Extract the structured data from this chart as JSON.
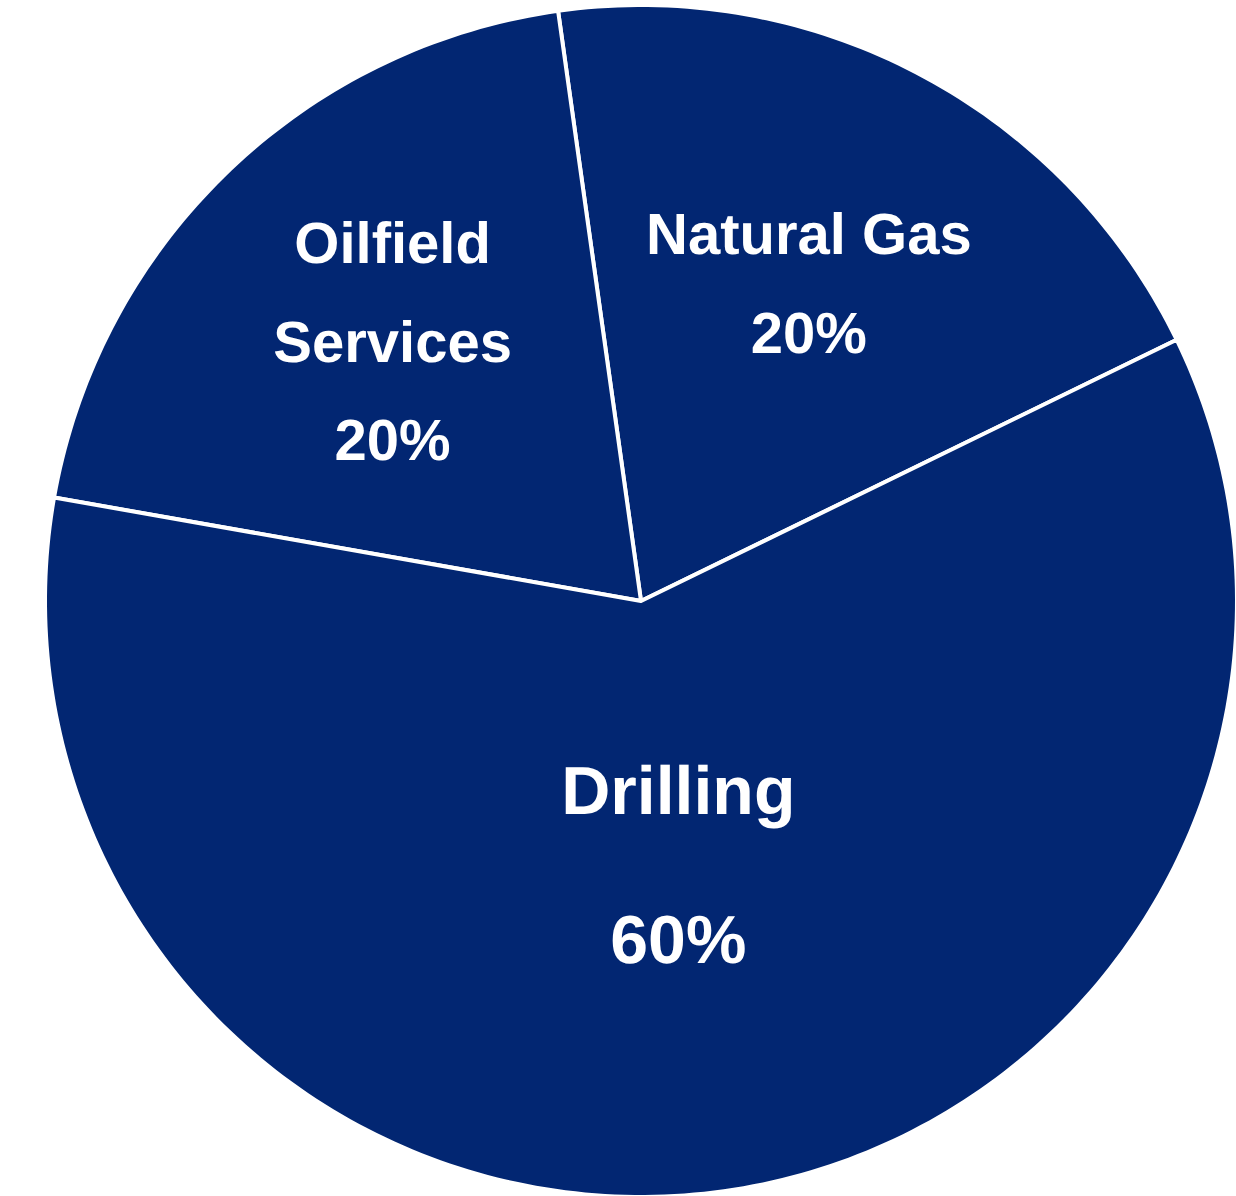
{
  "chart_data": {
    "type": "pie",
    "categories": [
      "Natural Gas",
      "Oilfield Services",
      "Drilling"
    ],
    "values": [
      20,
      20,
      60
    ],
    "colors": [
      "#022672",
      "#022672",
      "#022672"
    ],
    "value_labels": [
      "20%",
      "20%",
      "60%"
    ]
  }
}
